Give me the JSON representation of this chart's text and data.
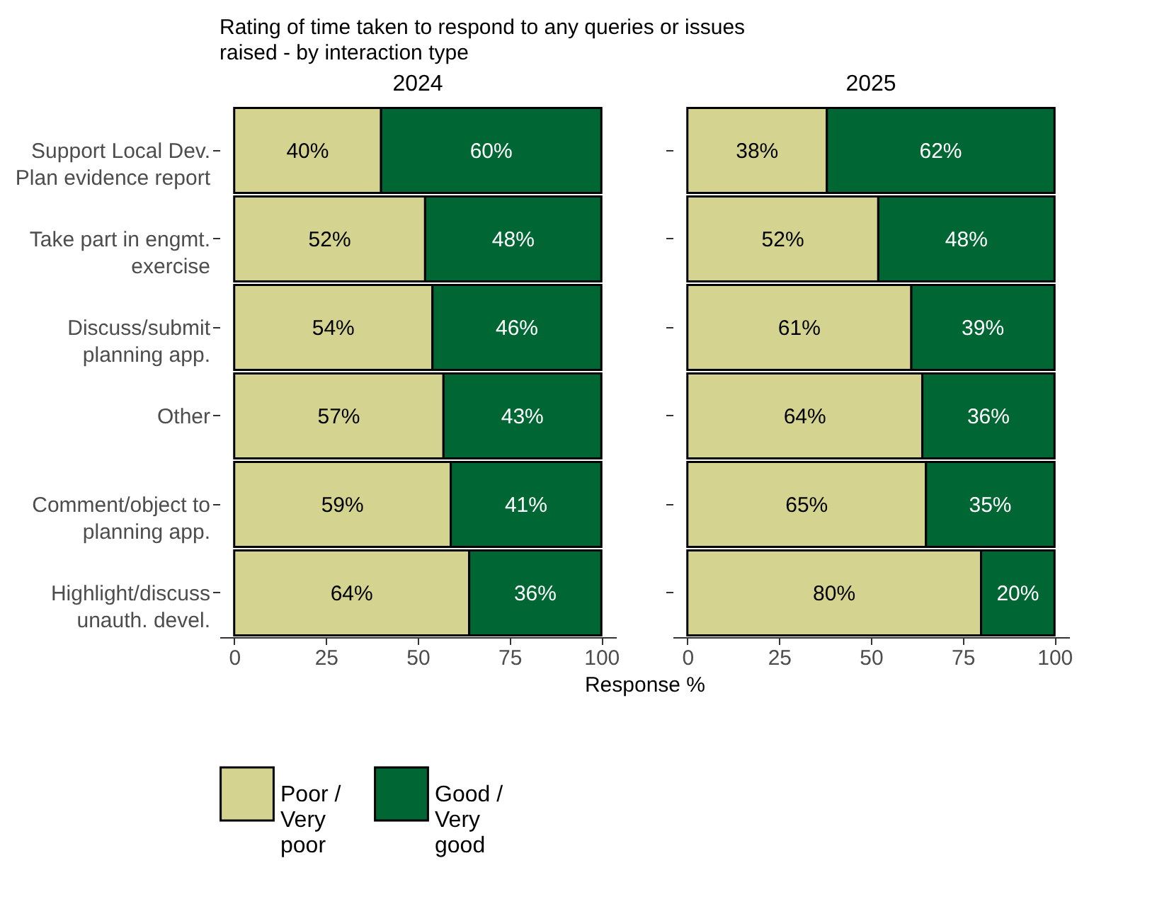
{
  "chart_data": [
    {
      "type": "bar",
      "orientation": "horizontal",
      "stacked": true,
      "title": "Rating of time taken to respond to any queries or issues raised - by interaction type",
      "subtitle": "2024",
      "xlabel": "Response %",
      "legend": "bottom",
      "categories": [
        "Support Local Dev. Plan evidence report",
        "Take part in engmt. exercise",
        "Discuss/submit planning app.",
        "Other",
        "Comment/object to planning app.",
        "Highlight/discuss unauth. devel."
      ],
      "series": [
        {
          "name": "Poor / Very poor",
          "color": "#d4d490",
          "values": [
            40,
            52,
            54,
            57,
            59,
            64
          ],
          "value_labels": [
            "40%",
            "52%",
            "54%",
            "57%",
            "59%",
            "64%"
          ]
        },
        {
          "name": "Good / Very good",
          "color": "#006633",
          "values": [
            60,
            48,
            46,
            43,
            41,
            36
          ],
          "value_labels": [
            "60%",
            "48%",
            "46%",
            "43%",
            "41%",
            "36%"
          ]
        }
      ],
      "xlim": [
        -4,
        104
      ],
      "xticks": [
        0,
        25,
        50,
        75,
        100
      ]
    },
    {
      "type": "bar",
      "orientation": "horizontal",
      "stacked": true,
      "subtitle": "2025",
      "legend": "bottom",
      "tick_labels": "x",
      "series": [
        {
          "name": "Poor / Very poor",
          "color": "#d4d490",
          "values": [
            38,
            52,
            61,
            64,
            65,
            80
          ],
          "value_labels": [
            "38%",
            "52%",
            "61%",
            "64%",
            "65%",
            "80%"
          ]
        },
        {
          "name": "Good / Very good",
          "color": "#006633",
          "values": [
            62,
            48,
            39,
            36,
            35,
            20
          ],
          "value_labels": [
            "62%",
            "48%",
            "39%",
            "36%",
            "35%",
            "20%"
          ]
        }
      ],
      "xlim": [
        -4,
        104
      ],
      "xticks": [
        0,
        25,
        50,
        75,
        100
      ]
    }
  ]
}
